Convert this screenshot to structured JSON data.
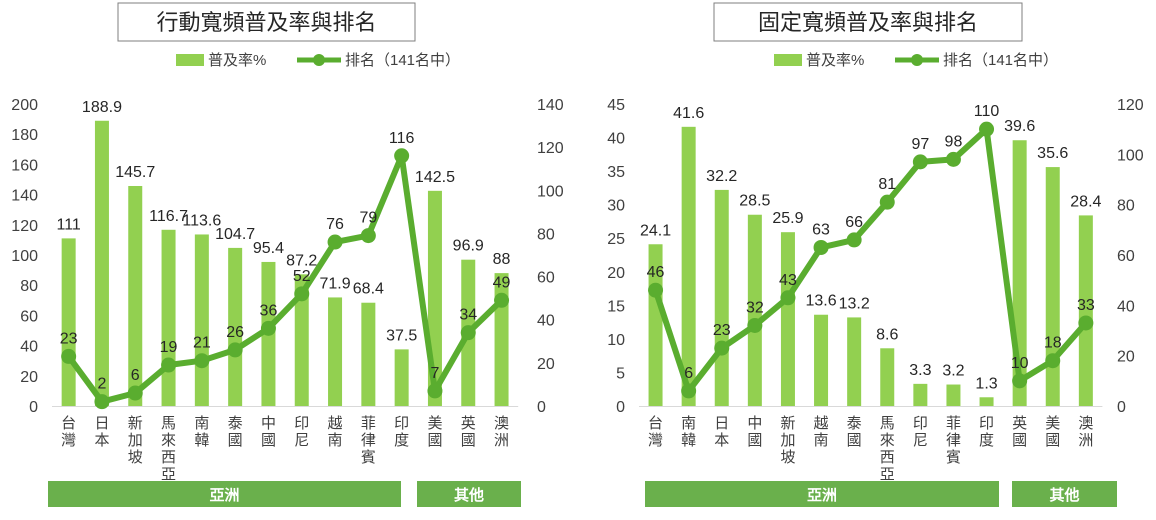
{
  "chart_data": [
    {
      "type": "bar+line",
      "title": "行動寬頻普及率與排名",
      "legend": {
        "bar": "普及率%",
        "line": "排名（141名中）",
        "placement": "top"
      },
      "categories": [
        "台灣",
        "日本",
        "新加坡",
        "馬來西亞",
        "南韓",
        "泰國",
        "中國",
        "印尼",
        "越南",
        "菲律賓",
        "印度",
        "美國",
        "英國",
        "澳洲"
      ],
      "bar_values": [
        111,
        188.9,
        145.7,
        116.7,
        113.6,
        104.7,
        95.4,
        87.2,
        71.9,
        68.4,
        37.5,
        142.5,
        96.9,
        88
      ],
      "line_values": [
        23,
        2,
        6,
        19,
        21,
        26,
        36,
        52,
        76,
        79,
        116,
        7,
        34,
        49
      ],
      "y_left": {
        "min": 0,
        "max": 200,
        "step": 20
      },
      "y_right": {
        "min": 0,
        "max": 140,
        "step": 20
      },
      "groups": [
        {
          "label": "亞洲",
          "start": 0,
          "end": 10
        },
        {
          "label": "其他",
          "start": 11,
          "end": 13
        }
      ],
      "colors": {
        "bar": "#92d050",
        "line": "#5aad2f",
        "group_bg": "#6ab04c",
        "group_text": "#ffffff"
      }
    },
    {
      "type": "bar+line",
      "title": "固定寬頻普及率與排名",
      "legend": {
        "bar": "普及率%",
        "line": "排名（141名中）",
        "placement": "top"
      },
      "categories": [
        "台灣",
        "南韓",
        "日本",
        "中國",
        "新加坡",
        "越南",
        "泰國",
        "馬來西亞",
        "印尼",
        "菲律賓",
        "印度",
        "英國",
        "美國",
        "澳洲"
      ],
      "bar_values": [
        24.1,
        41.6,
        32.2,
        28.5,
        25.9,
        13.6,
        13.2,
        8.6,
        3.3,
        3.2,
        1.3,
        39.6,
        35.6,
        28.4
      ],
      "line_values": [
        46,
        6,
        23,
        32,
        43,
        63,
        66,
        81,
        97,
        98,
        110,
        10,
        18,
        33
      ],
      "y_left": {
        "min": 0,
        "max": 45,
        "step": 5
      },
      "y_right": {
        "min": 0,
        "max": 120,
        "step": 20
      },
      "groups": [
        {
          "label": "亞洲",
          "start": 0,
          "end": 10
        },
        {
          "label": "其他",
          "start": 11,
          "end": 13
        }
      ],
      "colors": {
        "bar": "#92d050",
        "line": "#5aad2f",
        "group_bg": "#6ab04c",
        "group_text": "#ffffff"
      }
    }
  ]
}
